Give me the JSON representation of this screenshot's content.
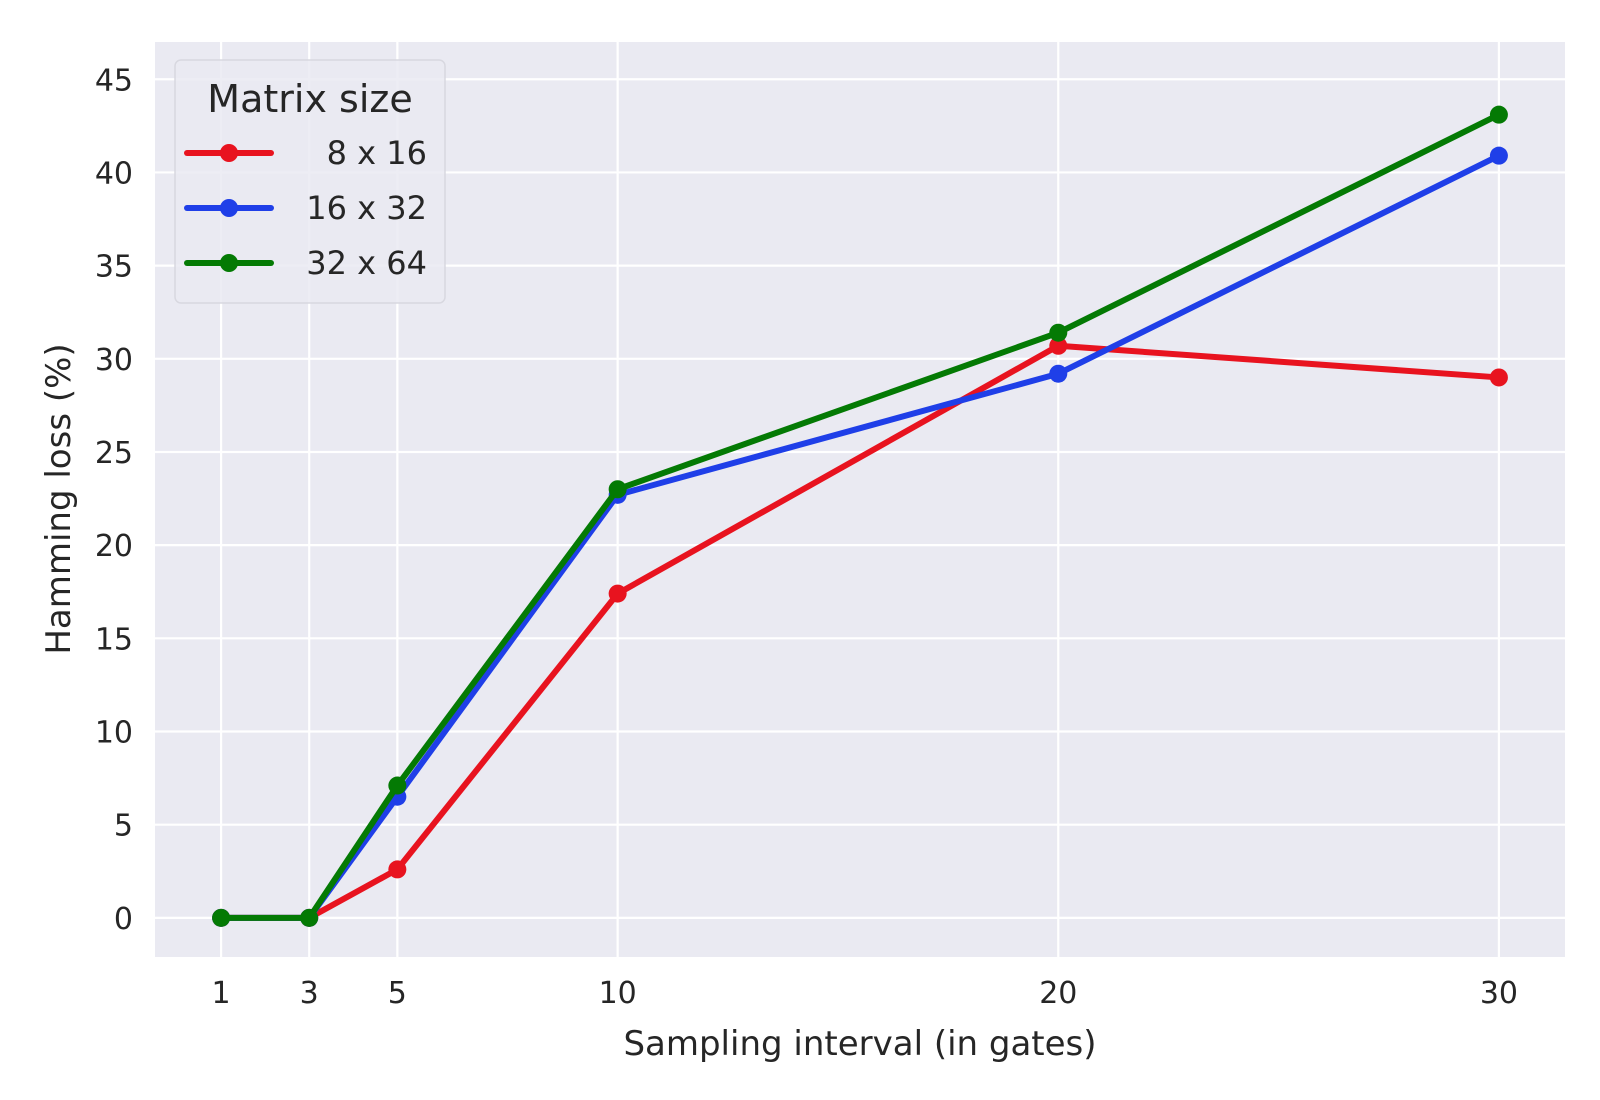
{
  "chart_data": {
    "type": "line",
    "title": "",
    "xlabel": "Sampling interval (in gates)",
    "ylabel": "Hamming loss (%)",
    "x": [
      1,
      3,
      5,
      10,
      20,
      30
    ],
    "x_ticks": [
      1,
      3,
      5,
      10,
      20,
      30
    ],
    "y_ticks": [
      0,
      5,
      10,
      15,
      20,
      25,
      30,
      35,
      40,
      45
    ],
    "xlim": [
      -0.5,
      31.5
    ],
    "ylim": [
      -2.1,
      47
    ],
    "grid": true,
    "legend": {
      "title": "Matrix size",
      "position": "top-left"
    },
    "series": [
      {
        "name": "8 x 16",
        "color": "#e8131f",
        "values": [
          0,
          0,
          2.6,
          17.4,
          30.7,
          29.0
        ]
      },
      {
        "name": "16 x 32",
        "color": "#1f3fe8",
        "values": [
          0,
          0,
          6.5,
          22.7,
          29.2,
          40.9
        ]
      },
      {
        "name": "32 x 64",
        "color": "#047a04",
        "values": [
          0,
          0,
          7.1,
          23.0,
          31.4,
          43.1
        ]
      }
    ]
  }
}
